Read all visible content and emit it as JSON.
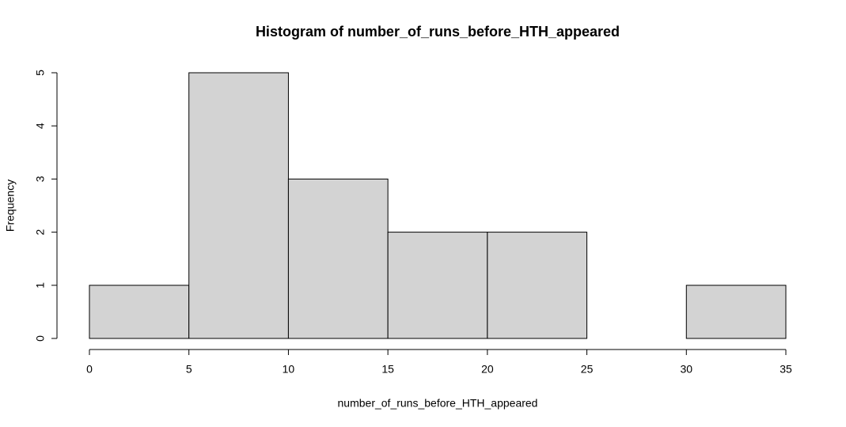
{
  "chart_data": {
    "type": "histogram",
    "title": "Histogram of number_of_runs_before_HTH_appeared",
    "x_label": "number_of_runs_before_HTH_appeared",
    "y_label": "Frequency",
    "bins": [
      0,
      5,
      10,
      15,
      20,
      25,
      30,
      35
    ],
    "values": [
      1,
      5,
      3,
      2,
      2,
      0,
      1
    ],
    "color": "#d3d3d3",
    "xlim": [
      0,
      35
    ],
    "xticks": [
      0,
      5,
      10,
      15,
      20,
      25,
      30,
      35
    ],
    "ylim": [
      0,
      5
    ],
    "yticks": [
      0,
      1,
      2,
      3,
      4,
      5
    ]
  }
}
